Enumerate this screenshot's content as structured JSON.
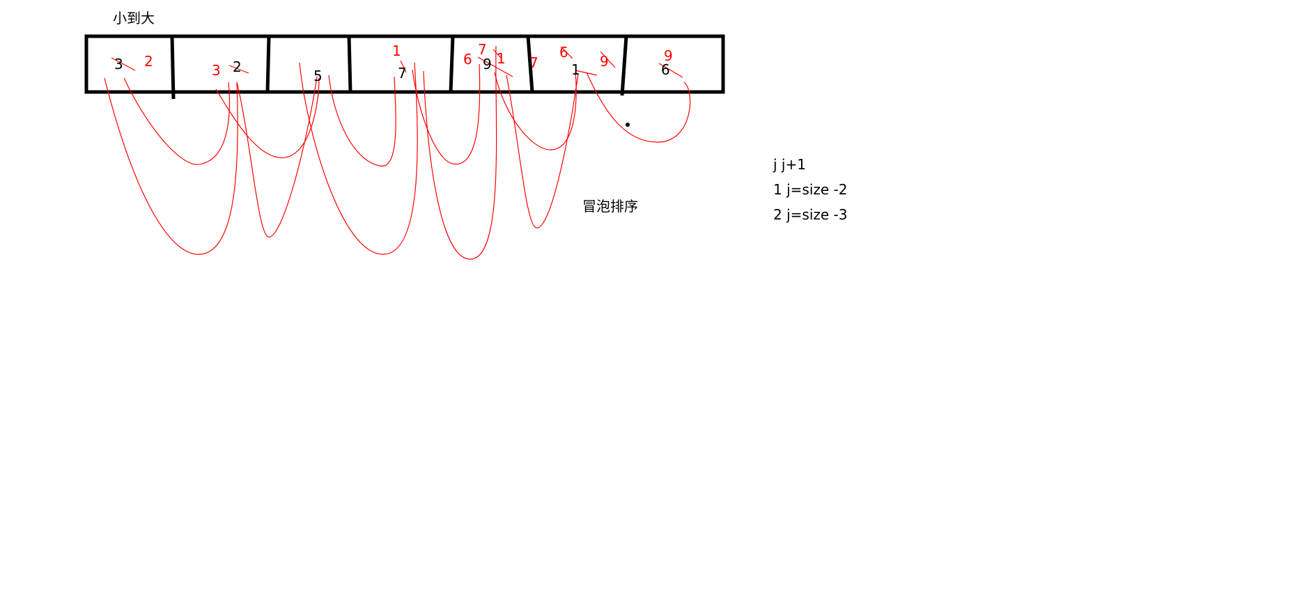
{
  "title": "小到大",
  "label_bubble": "冒泡排序",
  "notes": [
    "j  j+1",
    "1 j=size -2",
    "2 j=size -3"
  ],
  "cells": {
    "c1": {
      "black": "3",
      "red": "2"
    },
    "c2": {
      "red": "3",
      "black": "2"
    },
    "c3": {
      "black": "5"
    },
    "c4": {
      "red": "1",
      "black": "7"
    },
    "c5": {
      "red_top": "7",
      "red_left": "6",
      "black": "9",
      "red_right": "1"
    },
    "c6": {
      "red_left": "7",
      "red_top": "6",
      "black": "1",
      "red_right": "9"
    },
    "c7": {
      "red": "9",
      "black": "6"
    }
  },
  "colors": {
    "stroke": "#000000",
    "annotation": "#ff0000"
  }
}
